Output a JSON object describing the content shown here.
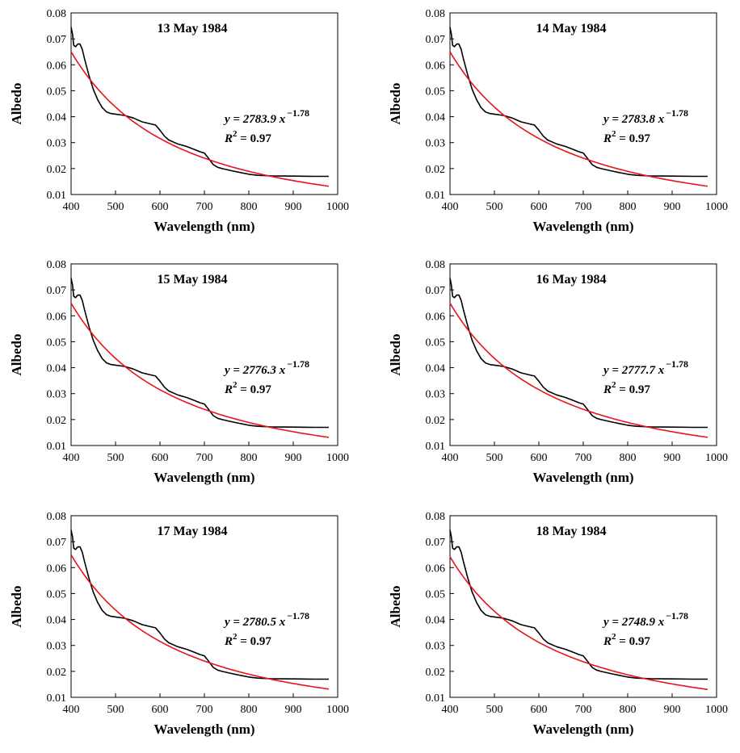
{
  "colors": {
    "measured": "#000000",
    "fit": "#e8141b"
  },
  "chart_data": [
    {
      "type": "line",
      "title": "13 May 1984",
      "xlabel": "Wavelength (nm)",
      "ylabel": "Albedo",
      "xlim": [
        400,
        1000
      ],
      "ylim": [
        0.01,
        0.08
      ],
      "xticks": [
        "400",
        "500",
        "600",
        "700",
        "800",
        "900",
        "1000"
      ],
      "yticks": [
        "0.01",
        "0.02",
        "0.03",
        "0.04",
        "0.05",
        "0.06",
        "0.07",
        "0.08"
      ],
      "grid": false,
      "equation": {
        "prefix": "y = 2783.9 ",
        "var": "x",
        "exponent": "−1.78",
        "r2_prefix": "R",
        "r2_exp": "2",
        "r2_value": " = 0.97"
      },
      "fit": {
        "a": 2783.9,
        "b": -1.78,
        "x_range": [
          400,
          980
        ]
      },
      "series": [
        {
          "x": [
            400,
            403,
            406,
            410,
            415,
            420,
            425,
            430,
            440,
            450,
            460,
            470,
            480,
            490,
            500,
            520,
            540,
            560,
            580,
            590,
            600,
            610,
            620,
            640,
            660,
            680,
            690,
            700,
            710,
            720,
            730,
            740,
            760,
            780,
            800,
            820,
            850,
            900,
            950,
            980
          ],
          "y": [
            0.0745,
            0.072,
            0.0675,
            0.067,
            0.068,
            0.068,
            0.066,
            0.0625,
            0.056,
            0.0505,
            0.0465,
            0.0435,
            0.0418,
            0.0412,
            0.041,
            0.0405,
            0.0395,
            0.038,
            0.0372,
            0.0368,
            0.0348,
            0.0325,
            0.031,
            0.0295,
            0.0285,
            0.0272,
            0.0265,
            0.026,
            0.0238,
            0.0215,
            0.0205,
            0.02,
            0.0192,
            0.0185,
            0.0178,
            0.0174,
            0.0172,
            0.0171,
            0.017,
            0.017
          ]
        }
      ]
    },
    {
      "type": "line",
      "title": "14 May 1984",
      "xlabel": "Wavelength (nm)",
      "ylabel": "Albedo",
      "xlim": [
        400,
        1000
      ],
      "ylim": [
        0.01,
        0.08
      ],
      "xticks": [
        "400",
        "500",
        "600",
        "700",
        "800",
        "900",
        "1000"
      ],
      "yticks": [
        "0.01",
        "0.02",
        "0.03",
        "0.04",
        "0.05",
        "0.06",
        "0.07",
        "0.08"
      ],
      "grid": false,
      "equation": {
        "prefix": "y = 2783.8 ",
        "var": "x",
        "exponent": "−1.78",
        "r2_prefix": "R",
        "r2_exp": "2",
        "r2_value": " = 0.97"
      },
      "fit": {
        "a": 2783.8,
        "b": -1.78,
        "x_range": [
          400,
          980
        ]
      },
      "series": [
        {
          "x": [
            400,
            403,
            406,
            410,
            415,
            420,
            425,
            430,
            440,
            450,
            460,
            470,
            480,
            490,
            500,
            520,
            540,
            560,
            580,
            590,
            600,
            610,
            620,
            640,
            660,
            680,
            690,
            700,
            710,
            720,
            730,
            740,
            760,
            780,
            800,
            820,
            850,
            900,
            950,
            980
          ],
          "y": [
            0.0745,
            0.072,
            0.0675,
            0.067,
            0.068,
            0.068,
            0.066,
            0.0625,
            0.056,
            0.0505,
            0.0465,
            0.0435,
            0.0418,
            0.0412,
            0.041,
            0.0405,
            0.0395,
            0.038,
            0.0372,
            0.0368,
            0.0348,
            0.0325,
            0.031,
            0.0295,
            0.0285,
            0.0272,
            0.0265,
            0.026,
            0.0238,
            0.0215,
            0.0205,
            0.02,
            0.0192,
            0.0185,
            0.0178,
            0.0174,
            0.0172,
            0.0171,
            0.017,
            0.017
          ]
        }
      ]
    },
    {
      "type": "line",
      "title": "15 May 1984",
      "xlabel": "Wavelength (nm)",
      "ylabel": "Albedo",
      "xlim": [
        400,
        1000
      ],
      "ylim": [
        0.01,
        0.08
      ],
      "xticks": [
        "400",
        "500",
        "600",
        "700",
        "800",
        "900",
        "1000"
      ],
      "yticks": [
        "0.01",
        "0.02",
        "0.03",
        "0.04",
        "0.05",
        "0.06",
        "0.07",
        "0.08"
      ],
      "grid": false,
      "equation": {
        "prefix": "y = 2776.3 ",
        "var": "x",
        "exponent": "−1.78",
        "r2_prefix": "R",
        "r2_exp": "2",
        "r2_value": " = 0.97"
      },
      "fit": {
        "a": 2776.3,
        "b": -1.78,
        "x_range": [
          400,
          980
        ]
      },
      "series": [
        {
          "x": [
            400,
            403,
            406,
            410,
            415,
            420,
            425,
            430,
            440,
            450,
            460,
            470,
            480,
            490,
            500,
            520,
            540,
            560,
            580,
            590,
            600,
            610,
            620,
            640,
            660,
            680,
            690,
            700,
            710,
            720,
            730,
            740,
            760,
            780,
            800,
            820,
            850,
            900,
            950,
            980
          ],
          "y": [
            0.0745,
            0.072,
            0.0675,
            0.067,
            0.068,
            0.068,
            0.066,
            0.0625,
            0.056,
            0.0505,
            0.0465,
            0.0435,
            0.0418,
            0.0412,
            0.041,
            0.0405,
            0.0395,
            0.038,
            0.0372,
            0.0368,
            0.0348,
            0.0325,
            0.031,
            0.0295,
            0.0285,
            0.0272,
            0.0265,
            0.026,
            0.0238,
            0.0215,
            0.0205,
            0.02,
            0.0192,
            0.0185,
            0.0178,
            0.0174,
            0.0172,
            0.0171,
            0.017,
            0.017
          ]
        }
      ]
    },
    {
      "type": "line",
      "title": "16 May 1984",
      "xlabel": "Wavelength (nm)",
      "ylabel": "Albedo",
      "xlim": [
        400,
        1000
      ],
      "ylim": [
        0.01,
        0.08
      ],
      "xticks": [
        "400",
        "500",
        "600",
        "700",
        "800",
        "900",
        "1000"
      ],
      "yticks": [
        "0.01",
        "0.02",
        "0.03",
        "0.04",
        "0.05",
        "0.06",
        "0.07",
        "0.08"
      ],
      "grid": false,
      "equation": {
        "prefix": "y = 2777.7 ",
        "var": "x",
        "exponent": "−1.78",
        "r2_prefix": "R",
        "r2_exp": "2",
        "r2_value": " = 0.97"
      },
      "fit": {
        "a": 2777.7,
        "b": -1.78,
        "x_range": [
          400,
          980
        ]
      },
      "series": [
        {
          "x": [
            400,
            403,
            406,
            410,
            415,
            420,
            425,
            430,
            440,
            450,
            460,
            470,
            480,
            490,
            500,
            520,
            540,
            560,
            580,
            590,
            600,
            610,
            620,
            640,
            660,
            680,
            690,
            700,
            710,
            720,
            730,
            740,
            760,
            780,
            800,
            820,
            850,
            900,
            950,
            980
          ],
          "y": [
            0.0745,
            0.072,
            0.0675,
            0.067,
            0.068,
            0.068,
            0.066,
            0.0625,
            0.056,
            0.0505,
            0.0465,
            0.0435,
            0.0418,
            0.0412,
            0.041,
            0.0405,
            0.0395,
            0.038,
            0.0372,
            0.0368,
            0.0348,
            0.0325,
            0.031,
            0.0295,
            0.0285,
            0.0272,
            0.0265,
            0.026,
            0.0238,
            0.0215,
            0.0205,
            0.02,
            0.0192,
            0.0185,
            0.0178,
            0.0174,
            0.0172,
            0.0171,
            0.017,
            0.017
          ]
        }
      ]
    },
    {
      "type": "line",
      "title": "17 May 1984",
      "xlabel": "Wavelength (nm)",
      "ylabel": "Albedo",
      "xlim": [
        400,
        1000
      ],
      "ylim": [
        0.01,
        0.08
      ],
      "xticks": [
        "400",
        "500",
        "600",
        "700",
        "800",
        "900",
        "1000"
      ],
      "yticks": [
        "0.01",
        "0.02",
        "0.03",
        "0.04",
        "0.05",
        "0.06",
        "0.07",
        "0.08"
      ],
      "grid": false,
      "equation": {
        "prefix": "y = 2780.5 ",
        "var": "x",
        "exponent": "−1.78",
        "r2_prefix": "R",
        "r2_exp": "2",
        "r2_value": " = 0.97"
      },
      "fit": {
        "a": 2780.5,
        "b": -1.78,
        "x_range": [
          400,
          980
        ]
      },
      "series": [
        {
          "x": [
            400,
            403,
            406,
            410,
            415,
            420,
            425,
            430,
            440,
            450,
            460,
            470,
            480,
            490,
            500,
            520,
            540,
            560,
            580,
            590,
            600,
            610,
            620,
            640,
            660,
            680,
            690,
            700,
            710,
            720,
            730,
            740,
            760,
            780,
            800,
            820,
            850,
            900,
            950,
            980
          ],
          "y": [
            0.0745,
            0.072,
            0.0675,
            0.067,
            0.068,
            0.068,
            0.066,
            0.0625,
            0.056,
            0.0505,
            0.0465,
            0.0435,
            0.0418,
            0.0412,
            0.041,
            0.0405,
            0.0395,
            0.038,
            0.0372,
            0.0368,
            0.0348,
            0.0325,
            0.031,
            0.0295,
            0.0285,
            0.0272,
            0.0265,
            0.026,
            0.0238,
            0.0215,
            0.0205,
            0.02,
            0.0192,
            0.0185,
            0.0178,
            0.0174,
            0.0172,
            0.0171,
            0.017,
            0.017
          ]
        }
      ]
    },
    {
      "type": "line",
      "title": "18 May 1984",
      "xlabel": "Wavelength (nm)",
      "ylabel": "Albedo",
      "xlim": [
        400,
        1000
      ],
      "ylim": [
        0.01,
        0.08
      ],
      "xticks": [
        "400",
        "500",
        "600",
        "700",
        "800",
        "900",
        "1000"
      ],
      "yticks": [
        "0.01",
        "0.02",
        "0.03",
        "0.04",
        "0.05",
        "0.06",
        "0.07",
        "0.08"
      ],
      "grid": false,
      "equation": {
        "prefix": "y = 2748.9 ",
        "var": "x",
        "exponent": "−1.78",
        "r2_prefix": "R",
        "r2_exp": "2",
        "r2_value": " = 0.97"
      },
      "fit": {
        "a": 2748.9,
        "b": -1.78,
        "x_range": [
          400,
          980
        ]
      },
      "series": [
        {
          "x": [
            400,
            403,
            406,
            410,
            415,
            420,
            425,
            430,
            440,
            450,
            460,
            470,
            480,
            490,
            500,
            520,
            540,
            560,
            580,
            590,
            600,
            610,
            620,
            640,
            660,
            680,
            690,
            700,
            710,
            720,
            730,
            740,
            760,
            780,
            800,
            820,
            850,
            900,
            950,
            980
          ],
          "y": [
            0.0745,
            0.072,
            0.0675,
            0.067,
            0.068,
            0.068,
            0.066,
            0.0625,
            0.056,
            0.0505,
            0.0465,
            0.0435,
            0.0418,
            0.0412,
            0.041,
            0.0405,
            0.0395,
            0.038,
            0.0372,
            0.0368,
            0.0348,
            0.0325,
            0.031,
            0.0295,
            0.0285,
            0.0272,
            0.0265,
            0.026,
            0.0238,
            0.0215,
            0.0205,
            0.02,
            0.0192,
            0.0185,
            0.0178,
            0.0174,
            0.0172,
            0.0171,
            0.017,
            0.017
          ]
        }
      ]
    }
  ]
}
